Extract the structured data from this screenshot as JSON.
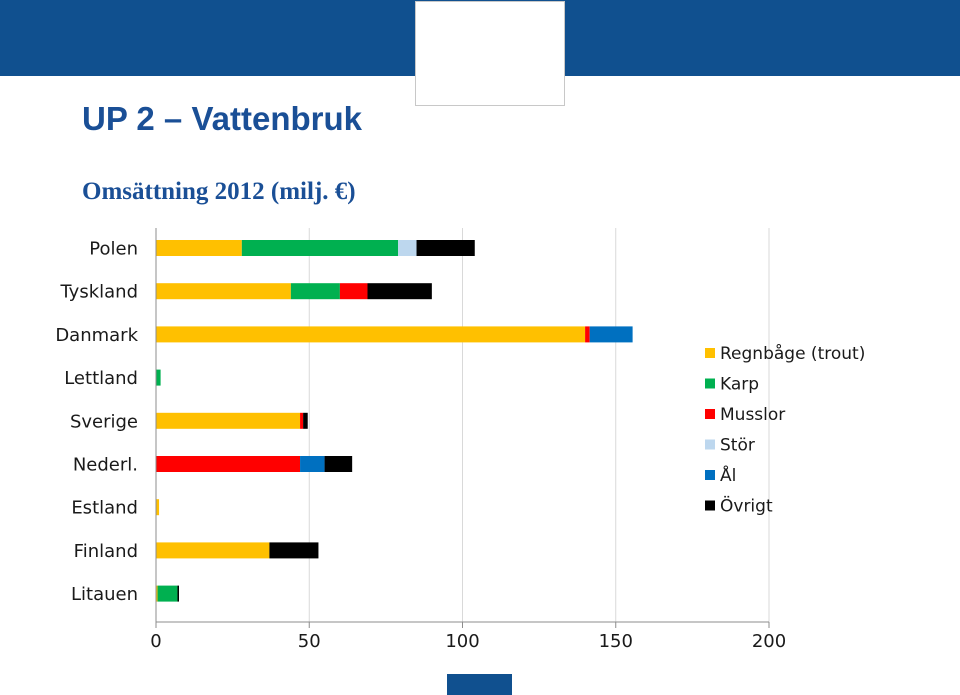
{
  "slide": {
    "title": "UP 2 – Vattenbruk",
    "subtitle": "Omsättning 2012 (milj. €)"
  },
  "colors": {
    "banner": "#10508f",
    "title_text": "#1a4f96",
    "series": [
      "#ffc000",
      "#00b050",
      "#ff0000",
      "#bdd7ee",
      "#0070c0",
      "#000000"
    ]
  },
  "chart_data": {
    "type": "bar",
    "orientation": "horizontal",
    "stacked": true,
    "categories": [
      "Polen",
      "Tyskland",
      "Danmark",
      "Lettland",
      "Sverige",
      "Nederl.",
      "Estland",
      "Finland",
      "Litauen"
    ],
    "series": [
      {
        "name": "Regnbåge (trout)",
        "color": "#ffc000",
        "values": [
          28,
          44,
          140,
          0,
          47,
          0,
          1,
          37,
          0.5
        ]
      },
      {
        "name": "Karp",
        "color": "#00b050",
        "values": [
          51,
          16,
          0,
          1.5,
          0,
          0,
          0,
          0,
          6.5
        ]
      },
      {
        "name": "Musslor",
        "color": "#ff0000",
        "values": [
          0,
          9,
          1.5,
          0,
          1,
          47,
          0,
          0,
          0
        ]
      },
      {
        "name": "Stör",
        "color": "#bdd7ee",
        "values": [
          6,
          0,
          0,
          0,
          0,
          0,
          0,
          0,
          0
        ]
      },
      {
        "name": "Ål",
        "color": "#0070c0",
        "values": [
          0,
          0,
          14,
          0,
          0,
          8,
          0,
          0,
          0
        ]
      },
      {
        "name": "Övrigt",
        "color": "#000000",
        "values": [
          19,
          21,
          0,
          0,
          1.5,
          9,
          0,
          16,
          0.5
        ]
      }
    ],
    "x_ticks": [
      "0",
      "50",
      "100",
      "150",
      "200"
    ],
    "xlim": [
      0,
      200
    ],
    "grid": "vertical",
    "legend_position": "right"
  }
}
